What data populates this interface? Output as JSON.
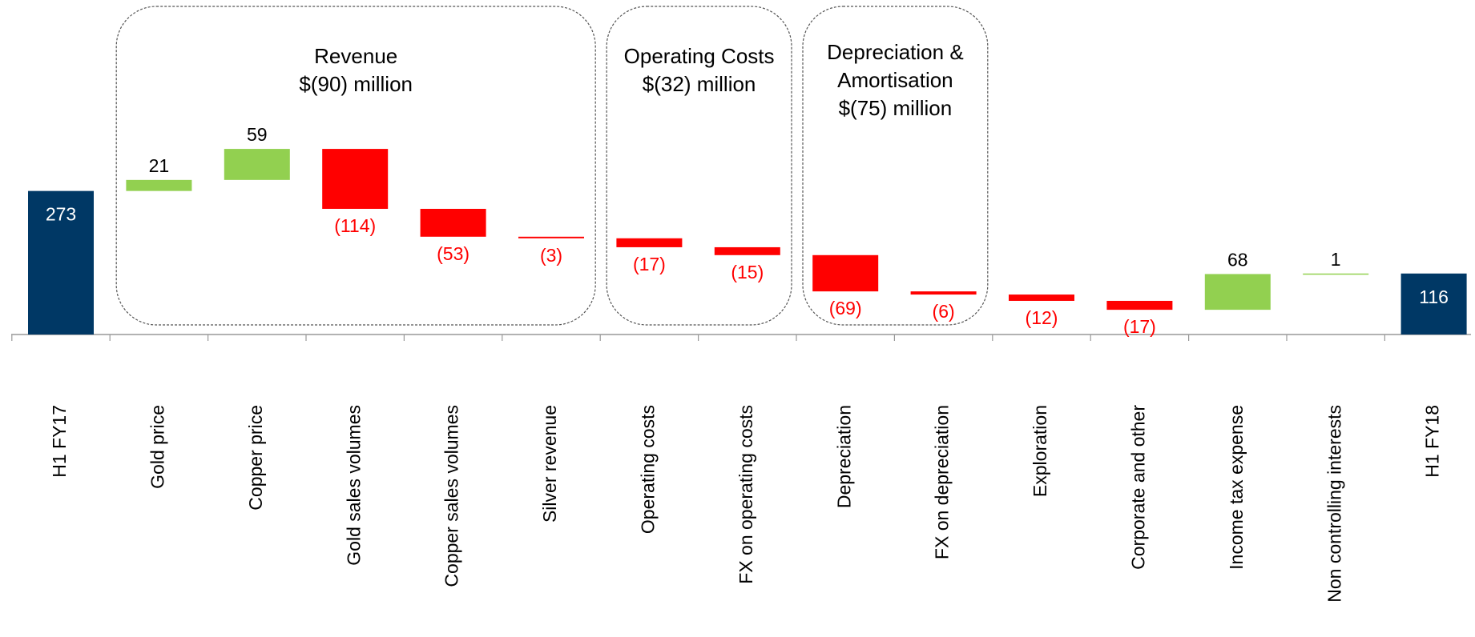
{
  "chart_data": {
    "type": "waterfall",
    "categories": [
      "H1 FY17",
      "Gold price",
      "Copper price",
      "Gold sales volumes",
      "Copper sales volumes",
      "Silver revenue",
      "Operating costs",
      "FX on operating costs",
      "Depreciation",
      "FX on depreciation",
      "Exploration",
      "Corporate and other",
      "Income tax expense",
      "Non controlling interests",
      "H1 FY18"
    ],
    "values": [
      273,
      21,
      59,
      -114,
      -53,
      -3,
      -17,
      -15,
      -69,
      -6,
      -12,
      -17,
      68,
      1,
      116
    ],
    "value_labels": [
      "273",
      "21",
      "59",
      "(114)",
      "(53)",
      "(3)",
      "(17)",
      "(15)",
      "(69)",
      "(6)",
      "(12)",
      "(17)",
      "68",
      "1",
      "116"
    ],
    "measure": [
      "total",
      "relative",
      "relative",
      "relative",
      "relative",
      "relative",
      "relative",
      "relative",
      "relative",
      "relative",
      "relative",
      "relative",
      "relative",
      "relative",
      "total"
    ],
    "total_color": "#003865",
    "increase_color": "#92d050",
    "decrease_color": "#ff0000",
    "groups": [
      {
        "lines": [
          "Revenue",
          "$(90) million"
        ],
        "first": "Gold price",
        "last": "Silver revenue"
      },
      {
        "lines": [
          "Operating Costs",
          "$(32) million"
        ],
        "first": "Operating costs",
        "last": "FX on operating costs"
      },
      {
        "lines": [
          "Depreciation &",
          "Amortisation",
          "$(75) million"
        ],
        "first": "Depreciation",
        "last": "FX on depreciation"
      }
    ]
  }
}
